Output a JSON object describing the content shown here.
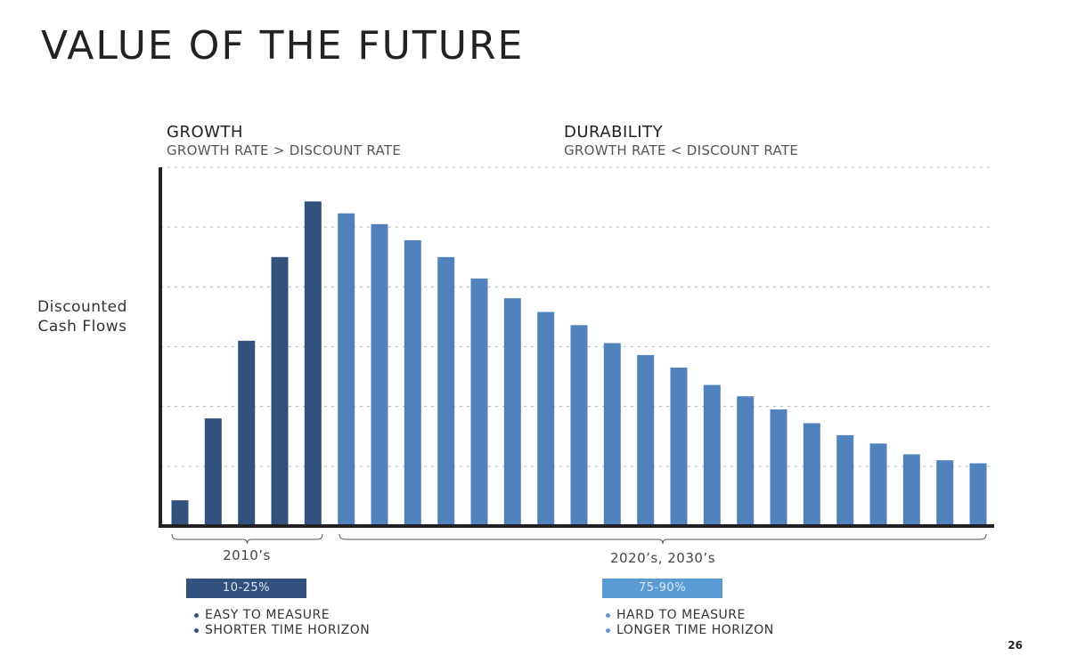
{
  "title": "VALUE OF THE FUTURE",
  "sections": {
    "growth": {
      "heading": "GROWTH",
      "subheading": "GROWTH RATE > DISCOUNT RATE"
    },
    "durability": {
      "heading": "DURABILITY",
      "subheading": "GROWTH RATE < DISCOUNT RATE"
    }
  },
  "colors": {
    "growth_bar": "#31527f",
    "durability_bar": "#5083bd",
    "growth_badge": "#31527f",
    "durability_badge": "#5b9bd5",
    "axis": "#222222",
    "grid": "#bbbbbb"
  },
  "periods": {
    "early": "2010’s",
    "late": "2020’s, 2030’s"
  },
  "badges": {
    "early": "10-25%",
    "late": "75-90%"
  },
  "bullets": {
    "early": [
      "EASY TO MEASURE",
      "SHORTER TIME HORIZON"
    ],
    "late": [
      "HARD TO MEASURE",
      "LONGER TIME HORIZON"
    ]
  },
  "page_number": "26",
  "chart_data": {
    "type": "bar",
    "ylabel": "Discounted Cash Flows",
    "xlabel": "",
    "ylim": [
      0,
      6
    ],
    "grid": true,
    "axis_tick_labels_visible": false,
    "categories": [
      "1",
      "2",
      "3",
      "4",
      "5",
      "6",
      "7",
      "8",
      "9",
      "10",
      "11",
      "12",
      "13",
      "14",
      "15",
      "16",
      "17",
      "18",
      "19",
      "20",
      "21",
      "22",
      "23",
      "24",
      "25"
    ],
    "series": [
      {
        "phase": "growth",
        "values": [
          0.43,
          1.8,
          3.1,
          4.5,
          5.43,
          null,
          null,
          null,
          null,
          null,
          null,
          null,
          null,
          null,
          null,
          null,
          null,
          null,
          null,
          null,
          null,
          null,
          null,
          null,
          null
        ]
      },
      {
        "phase": "durability",
        "values": [
          null,
          null,
          null,
          null,
          null,
          5.23,
          5.05,
          4.78,
          4.5,
          4.14,
          3.81,
          3.58,
          3.36,
          3.06,
          2.86,
          2.65,
          2.36,
          2.17,
          1.95,
          1.72,
          1.52,
          1.38,
          1.2,
          1.1,
          1.05
        ]
      }
    ]
  }
}
